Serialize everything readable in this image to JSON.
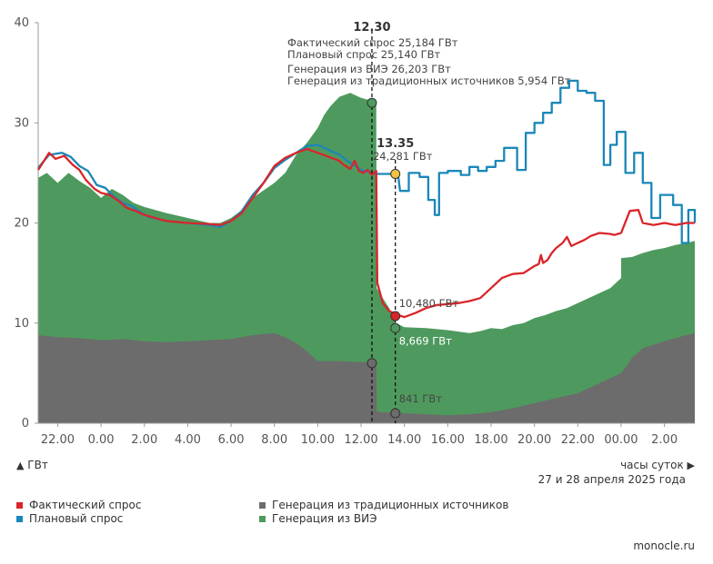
{
  "chart_data": {
    "type": "area+line",
    "title": "",
    "ylabel": "ГВт",
    "xlabel": "часы суток",
    "date_label": "27 и 28 апреля 2025 года",
    "ylim": [
      0,
      40
    ],
    "yticks": [
      "0",
      "10",
      "20",
      "30",
      "40"
    ],
    "xticks": [
      {
        "label": "22.00",
        "hour": 22
      },
      {
        "label": "0.00",
        "hour": 24
      },
      {
        "label": "2.00",
        "hour": 26
      },
      {
        "label": "4.00",
        "hour": 28
      },
      {
        "label": "6.00",
        "hour": 30
      },
      {
        "label": "8.00",
        "hour": 32
      },
      {
        "label": "10.00",
        "hour": 34
      },
      {
        "label": "12.00",
        "hour": 36
      },
      {
        "label": "14.00",
        "hour": 38
      },
      {
        "label": "16.00",
        "hour": 40
      },
      {
        "label": "18.00",
        "hour": 42
      },
      {
        "label": "20.00",
        "hour": 44
      },
      {
        "label": "22.00",
        "hour": 46
      },
      {
        "label": "00.00",
        "hour": 48
      },
      {
        "label": "2.00",
        "hour": 50
      }
    ],
    "xrange_hours": [
      21.1,
      51.4
    ],
    "colors": {
      "actual": "#d9252a",
      "planned": "#1a87b8",
      "traditional": "#6c6c6c",
      "renewable": "#4e9a5e",
      "marker_yellow": "#f4c542"
    },
    "series": [
      {
        "name": "Генерация из традиционных источников",
        "key": "traditional",
        "type": "area",
        "points": [
          [
            21.1,
            8.8
          ],
          [
            22,
            8.6
          ],
          [
            23,
            8.5
          ],
          [
            24,
            8.3
          ],
          [
            25,
            8.4
          ],
          [
            26,
            8.2
          ],
          [
            27,
            8.1
          ],
          [
            28,
            8.2
          ],
          [
            29,
            8.3
          ],
          [
            30,
            8.4
          ],
          [
            31,
            8.8
          ],
          [
            32,
            9.0
          ],
          [
            32.5,
            8.6
          ],
          [
            33,
            8.0
          ],
          [
            33.5,
            7.2
          ],
          [
            34,
            6.2
          ],
          [
            35,
            6.2
          ],
          [
            36,
            6.1
          ],
          [
            36.7,
            6.1
          ],
          [
            36.72,
            1.2
          ],
          [
            37,
            1.1
          ],
          [
            38,
            1.0
          ],
          [
            39,
            0.9
          ],
          [
            40,
            0.8
          ],
          [
            41,
            0.9
          ],
          [
            42,
            1.1
          ],
          [
            43,
            1.5
          ],
          [
            44,
            2.0
          ],
          [
            45,
            2.5
          ],
          [
            46,
            3.0
          ],
          [
            47,
            4.0
          ],
          [
            48,
            5.0
          ],
          [
            48.5,
            6.5
          ],
          [
            49,
            7.5
          ],
          [
            50,
            8.2
          ],
          [
            51,
            8.8
          ],
          [
            51.4,
            9.0
          ]
        ]
      },
      {
        "name": "Генерация из ВИЭ",
        "key": "renewable",
        "type": "area_stacked_total",
        "points": [
          [
            21.1,
            24.5
          ],
          [
            21.5,
            25.0
          ],
          [
            22,
            24.0
          ],
          [
            22.5,
            25.0
          ],
          [
            23,
            24.2
          ],
          [
            23.5,
            23.5
          ],
          [
            24,
            22.5
          ],
          [
            24.5,
            23.4
          ],
          [
            25,
            22.8
          ],
          [
            25.5,
            22.0
          ],
          [
            26,
            21.6
          ],
          [
            27,
            21.0
          ],
          [
            28,
            20.5
          ],
          [
            29,
            20.0
          ],
          [
            29.5,
            20.0
          ],
          [
            30,
            20.5
          ],
          [
            30.5,
            21.3
          ],
          [
            31,
            22.5
          ],
          [
            32,
            24.0
          ],
          [
            32.5,
            25.0
          ],
          [
            33,
            26.8
          ],
          [
            33.5,
            28.0
          ],
          [
            34,
            29.5
          ],
          [
            34.3,
            30.8
          ],
          [
            34.6,
            31.7
          ],
          [
            35,
            32.6
          ],
          [
            35.5,
            33.0
          ],
          [
            36,
            32.5
          ],
          [
            36.5,
            32.2
          ],
          [
            36.7,
            32.0
          ],
          [
            36.72,
            13.5
          ],
          [
            37,
            12.5
          ],
          [
            37.3,
            11.5
          ],
          [
            37.6,
            10.0
          ],
          [
            38,
            9.6
          ],
          [
            39,
            9.5
          ],
          [
            40,
            9.3
          ],
          [
            41,
            9.0
          ],
          [
            41.5,
            9.2
          ],
          [
            42,
            9.5
          ],
          [
            42.5,
            9.4
          ],
          [
            43,
            9.8
          ],
          [
            43.5,
            10.0
          ],
          [
            44,
            10.5
          ],
          [
            44.5,
            10.8
          ],
          [
            45,
            11.2
          ],
          [
            45.5,
            11.5
          ],
          [
            46,
            12.0
          ],
          [
            46.5,
            12.5
          ],
          [
            47,
            13.0
          ],
          [
            47.5,
            13.5
          ],
          [
            48,
            14.5
          ],
          [
            48,
            16.5
          ],
          [
            48.5,
            16.6
          ],
          [
            49,
            17.0
          ],
          [
            49.5,
            17.3
          ],
          [
            50,
            17.5
          ],
          [
            50.5,
            17.8
          ],
          [
            51,
            18.0
          ],
          [
            51.4,
            18.2
          ]
        ]
      },
      {
        "name": "Плановый спрос",
        "key": "planned",
        "type": "line",
        "points": [
          [
            21.1,
            25.5
          ],
          [
            21.6,
            26.8
          ],
          [
            22.2,
            27.0
          ],
          [
            22.6,
            26.6
          ],
          [
            23,
            25.7
          ],
          [
            23.4,
            25.2
          ],
          [
            23.8,
            23.8
          ],
          [
            24.2,
            23.5
          ],
          [
            24.6,
            22.6
          ],
          [
            25,
            22.0
          ],
          [
            25.4,
            21.7
          ],
          [
            25.8,
            21.1
          ],
          [
            26.2,
            20.6
          ],
          [
            27,
            20.2
          ],
          [
            28,
            20.0
          ],
          [
            29,
            19.8
          ],
          [
            29.5,
            19.6
          ],
          [
            30,
            20.2
          ],
          [
            30.5,
            21.2
          ],
          [
            31,
            22.8
          ],
          [
            31.5,
            24.0
          ],
          [
            32,
            25.5
          ],
          [
            32.5,
            26.3
          ],
          [
            33,
            27.0
          ],
          [
            33.5,
            27.7
          ],
          [
            34,
            27.8
          ],
          [
            34.5,
            27.3
          ],
          [
            35,
            26.8
          ],
          [
            35.5,
            26.0
          ],
          [
            36,
            25.3
          ],
          [
            36.5,
            25.0
          ],
          [
            36.7,
            24.9
          ],
          [
            37.7,
            24.9
          ],
          [
            37.8,
            23.2
          ],
          [
            38.2,
            23.2
          ],
          [
            38.2,
            25.0
          ],
          [
            38.7,
            25.0
          ],
          [
            38.7,
            24.6
          ],
          [
            39.1,
            24.6
          ],
          [
            39.1,
            22.3
          ],
          [
            39.4,
            22.3
          ],
          [
            39.4,
            20.8
          ],
          [
            39.6,
            20.8
          ],
          [
            39.6,
            25.0
          ],
          [
            40,
            25.0
          ],
          [
            40,
            25.2
          ],
          [
            40.6,
            25.2
          ],
          [
            40.6,
            24.8
          ],
          [
            41,
            24.8
          ],
          [
            41,
            25.6
          ],
          [
            41.4,
            25.6
          ],
          [
            41.4,
            25.2
          ],
          [
            41.8,
            25.2
          ],
          [
            41.8,
            25.6
          ],
          [
            42.2,
            25.6
          ],
          [
            42.2,
            26.2
          ],
          [
            42.6,
            26.2
          ],
          [
            42.6,
            27.5
          ],
          [
            43.2,
            27.5
          ],
          [
            43.2,
            25.3
          ],
          [
            43.6,
            25.3
          ],
          [
            43.6,
            29.0
          ],
          [
            44,
            29.0
          ],
          [
            44,
            30.0
          ],
          [
            44.4,
            30.0
          ],
          [
            44.4,
            31.0
          ],
          [
            44.8,
            31.0
          ],
          [
            44.8,
            32.0
          ],
          [
            45.2,
            32.0
          ],
          [
            45.2,
            33.5
          ],
          [
            45.6,
            33.5
          ],
          [
            45.6,
            34.2
          ],
          [
            46,
            34.2
          ],
          [
            46,
            33.2
          ],
          [
            46.4,
            33.2
          ],
          [
            46.4,
            33.0
          ],
          [
            46.8,
            33.0
          ],
          [
            46.8,
            32.2
          ],
          [
            47.2,
            32.2
          ],
          [
            47.2,
            25.8
          ],
          [
            47.5,
            25.8
          ],
          [
            47.5,
            27.8
          ],
          [
            47.8,
            27.8
          ],
          [
            47.8,
            29.1
          ],
          [
            48.2,
            29.1
          ],
          [
            48.2,
            25.0
          ],
          [
            48.6,
            25.0
          ],
          [
            48.6,
            27.0
          ],
          [
            49,
            27.0
          ],
          [
            49,
            24.0
          ],
          [
            49.4,
            24.0
          ],
          [
            49.4,
            20.5
          ],
          [
            49.8,
            20.5
          ],
          [
            49.8,
            22.8
          ],
          [
            50.4,
            22.8
          ],
          [
            50.4,
            21.8
          ],
          [
            50.8,
            21.8
          ],
          [
            50.8,
            18.0
          ],
          [
            51.1,
            18.0
          ],
          [
            51.1,
            21.3
          ],
          [
            51.4,
            21.3
          ],
          [
            51.4,
            20.0
          ]
        ]
      },
      {
        "name": "Фактический спрос",
        "key": "actual",
        "type": "line",
        "points": [
          [
            21.1,
            25.3
          ],
          [
            21.4,
            26.3
          ],
          [
            21.6,
            27.0
          ],
          [
            21.9,
            26.4
          ],
          [
            22.3,
            26.7
          ],
          [
            22.7,
            25.8
          ],
          [
            23,
            25.3
          ],
          [
            23.3,
            24.3
          ],
          [
            23.7,
            23.4
          ],
          [
            24,
            23.0
          ],
          [
            24.4,
            22.8
          ],
          [
            24.8,
            22.2
          ],
          [
            25.2,
            21.5
          ],
          [
            25.6,
            21.2
          ],
          [
            26,
            20.8
          ],
          [
            26.5,
            20.5
          ],
          [
            27,
            20.2
          ],
          [
            28,
            20.0
          ],
          [
            29,
            19.9
          ],
          [
            29.5,
            19.8
          ],
          [
            30,
            20.2
          ],
          [
            30.5,
            21.0
          ],
          [
            31,
            22.5
          ],
          [
            31.5,
            24.0
          ],
          [
            32,
            25.7
          ],
          [
            32.5,
            26.5
          ],
          [
            33,
            27.0
          ],
          [
            33.5,
            27.4
          ],
          [
            34,
            27.0
          ],
          [
            34.5,
            26.6
          ],
          [
            35,
            26.2
          ],
          [
            35.2,
            25.8
          ],
          [
            35.5,
            25.4
          ],
          [
            35.7,
            26.2
          ],
          [
            35.9,
            25.2
          ],
          [
            36.1,
            25.0
          ],
          [
            36.3,
            25.3
          ],
          [
            36.5,
            24.8
          ],
          [
            36.7,
            25.2
          ],
          [
            36.75,
            14.0
          ],
          [
            37,
            12.0
          ],
          [
            37.3,
            11.2
          ],
          [
            37.7,
            10.8
          ],
          [
            38,
            10.6
          ],
          [
            38.5,
            11.0
          ],
          [
            39,
            11.5
          ],
          [
            39.5,
            11.8
          ],
          [
            40,
            11.9
          ],
          [
            40.5,
            12.0
          ],
          [
            41,
            12.2
          ],
          [
            41.5,
            12.5
          ],
          [
            42,
            13.5
          ],
          [
            42.5,
            14.5
          ],
          [
            43,
            14.9
          ],
          [
            43.5,
            15.0
          ],
          [
            44,
            15.7
          ],
          [
            44.2,
            15.9
          ],
          [
            44.3,
            16.8
          ],
          [
            44.4,
            16.0
          ],
          [
            44.6,
            16.3
          ],
          [
            44.8,
            17.0
          ],
          [
            45,
            17.5
          ],
          [
            45.3,
            18.0
          ],
          [
            45.5,
            18.6
          ],
          [
            45.7,
            17.7
          ],
          [
            46,
            18.0
          ],
          [
            46.3,
            18.3
          ],
          [
            46.6,
            18.7
          ],
          [
            47,
            19.0
          ],
          [
            47.5,
            18.9
          ],
          [
            47.7,
            18.8
          ],
          [
            48,
            19.0
          ],
          [
            48.4,
            21.2
          ],
          [
            48.8,
            21.3
          ],
          [
            49,
            20.0
          ],
          [
            49.5,
            19.8
          ],
          [
            50,
            20.0
          ],
          [
            50.5,
            19.8
          ],
          [
            51,
            20.0
          ],
          [
            51.4,
            20.0
          ]
        ]
      }
    ],
    "annotations": [
      {
        "time_label": "12.30",
        "hour": 36.5,
        "lines": [
          "Фактический спрос 25,184 ГВт",
          "Плановый спрос 25,140 ГВт",
          "Генерация из ВИЭ 26,203 ГВт",
          "Генерация из традиционных источников 5,954 ГВт"
        ],
        "markers": [
          {
            "y": 32.0,
            "color": "#4e9a5e"
          },
          {
            "y": 6.0,
            "color": "#6c6c6c"
          }
        ]
      },
      {
        "time_label": "13.35",
        "hour": 37.58,
        "lines": [
          "24,281 ГВт"
        ],
        "markers": [
          {
            "y": 24.9,
            "color": "#f4c542",
            "label": ""
          },
          {
            "y": 10.7,
            "color": "#d9252a",
            "label": "10,480 ГВт"
          },
          {
            "y": 9.5,
            "color": "#4e9a5e",
            "label": "8,669 ГВт"
          },
          {
            "y": 1.0,
            "color": "#6c6c6c",
            "label": "841 ГВт"
          }
        ]
      }
    ],
    "legend": [
      {
        "label": "Фактический спрос",
        "key": "actual"
      },
      {
        "label": "Плановый спрос",
        "key": "planned"
      },
      {
        "label": "Генерация из традиционных источников",
        "key": "traditional"
      },
      {
        "label": "Генерация из ВИЭ",
        "key": "renewable"
      }
    ],
    "source": "monocle.ru"
  }
}
